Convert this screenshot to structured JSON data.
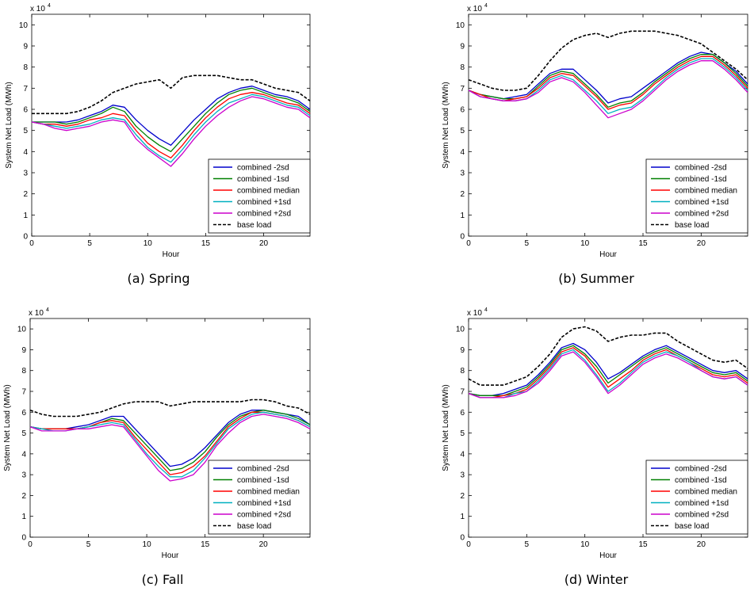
{
  "chart_data": [
    {
      "type": "line",
      "caption": "(a)  Spring",
      "xlabel": "Hour",
      "ylabel": "System Net Load (MWh)",
      "yexponent": "x 10",
      "yexponent_power": "4",
      "xlim": [
        0,
        24
      ],
      "ylim": [
        0,
        10.5
      ],
      "xticks": [
        "0",
        "5",
        "10",
        "15",
        "20"
      ],
      "yticks": [
        "0",
        "1",
        "2",
        "3",
        "4",
        "5",
        "6",
        "7",
        "8",
        "9",
        "10"
      ],
      "legend": "bottom-right",
      "x": [
        0,
        1,
        2,
        3,
        4,
        5,
        6,
        7,
        8,
        9,
        10,
        11,
        12,
        13,
        14,
        15,
        16,
        17,
        18,
        19,
        20,
        21,
        22,
        23,
        24
      ],
      "series": [
        {
          "name": "combined -2sd",
          "color": "#0000cc",
          "dash": "solid",
          "values": [
            5.4,
            5.4,
            5.4,
            5.4,
            5.5,
            5.7,
            5.9,
            6.2,
            6.1,
            5.5,
            5.0,
            4.6,
            4.3,
            4.9,
            5.5,
            6.0,
            6.5,
            6.8,
            7.0,
            7.1,
            6.9,
            6.7,
            6.6,
            6.4,
            6.0
          ]
        },
        {
          "name": "combined -1sd",
          "color": "#008000",
          "dash": "solid",
          "values": [
            5.4,
            5.4,
            5.4,
            5.3,
            5.4,
            5.6,
            5.8,
            6.1,
            5.9,
            5.2,
            4.7,
            4.3,
            4.0,
            4.6,
            5.2,
            5.8,
            6.3,
            6.7,
            6.9,
            7.0,
            6.8,
            6.6,
            6.5,
            6.3,
            5.9
          ]
        },
        {
          "name": "combined median",
          "color": "#ff0000",
          "dash": "solid",
          "values": [
            5.4,
            5.3,
            5.3,
            5.2,
            5.3,
            5.5,
            5.6,
            5.8,
            5.7,
            5.0,
            4.4,
            4.0,
            3.7,
            4.3,
            5.0,
            5.6,
            6.1,
            6.5,
            6.7,
            6.8,
            6.7,
            6.5,
            6.3,
            6.2,
            5.8
          ]
        },
        {
          "name": "combined +1sd",
          "color": "#00b0c0",
          "dash": "solid",
          "values": [
            5.4,
            5.3,
            5.2,
            5.1,
            5.2,
            5.3,
            5.5,
            5.6,
            5.5,
            4.8,
            4.2,
            3.8,
            3.5,
            4.1,
            4.8,
            5.4,
            5.9,
            6.3,
            6.5,
            6.7,
            6.6,
            6.4,
            6.2,
            6.1,
            5.7
          ]
        },
        {
          "name": "combined +2sd",
          "color": "#cc00cc",
          "dash": "solid",
          "values": [
            5.4,
            5.3,
            5.1,
            5.0,
            5.1,
            5.2,
            5.4,
            5.5,
            5.4,
            4.6,
            4.1,
            3.7,
            3.3,
            3.9,
            4.6,
            5.2,
            5.7,
            6.1,
            6.4,
            6.6,
            6.5,
            6.3,
            6.1,
            6.0,
            5.6
          ]
        },
        {
          "name": "base load",
          "color": "#000000",
          "dash": "dashed",
          "values": [
            5.8,
            5.8,
            5.8,
            5.8,
            5.9,
            6.1,
            6.4,
            6.8,
            7.0,
            7.2,
            7.3,
            7.4,
            7.0,
            7.5,
            7.6,
            7.6,
            7.6,
            7.5,
            7.4,
            7.4,
            7.2,
            7.0,
            6.9,
            6.8,
            6.4
          ]
        }
      ]
    },
    {
      "type": "line",
      "caption": "(b)  Summer",
      "xlabel": "Hour",
      "ylabel": "System Net Load (MWh)",
      "yexponent": "x 10",
      "yexponent_power": "4",
      "xlim": [
        0,
        24
      ],
      "ylim": [
        0,
        10.5
      ],
      "xticks": [
        "0",
        "5",
        "10",
        "15",
        "20"
      ],
      "yticks": [
        "0",
        "1",
        "2",
        "3",
        "4",
        "5",
        "6",
        "7",
        "8",
        "9",
        "10"
      ],
      "legend": "bottom-right",
      "x": [
        0,
        1,
        2,
        3,
        4,
        5,
        6,
        7,
        8,
        9,
        10,
        11,
        12,
        13,
        14,
        15,
        16,
        17,
        18,
        19,
        20,
        21,
        22,
        23,
        24
      ],
      "series": [
        {
          "name": "combined -2sd",
          "color": "#0000cc",
          "dash": "solid",
          "values": [
            6.9,
            6.7,
            6.6,
            6.5,
            6.6,
            6.7,
            7.2,
            7.7,
            7.9,
            7.9,
            7.4,
            6.9,
            6.3,
            6.5,
            6.6,
            7.0,
            7.4,
            7.8,
            8.2,
            8.5,
            8.7,
            8.6,
            8.2,
            7.8,
            7.2
          ]
        },
        {
          "name": "combined -1sd",
          "color": "#008000",
          "dash": "solid",
          "values": [
            6.9,
            6.7,
            6.6,
            6.5,
            6.5,
            6.6,
            7.1,
            7.6,
            7.8,
            7.7,
            7.2,
            6.7,
            6.1,
            6.3,
            6.4,
            6.8,
            7.3,
            7.7,
            8.1,
            8.4,
            8.6,
            8.6,
            8.2,
            7.7,
            7.1
          ]
        },
        {
          "name": "combined median",
          "color": "#ff0000",
          "dash": "solid",
          "values": [
            6.9,
            6.7,
            6.5,
            6.4,
            6.5,
            6.6,
            7.0,
            7.5,
            7.7,
            7.6,
            7.1,
            6.6,
            6.0,
            6.2,
            6.3,
            6.7,
            7.2,
            7.6,
            8.0,
            8.3,
            8.5,
            8.5,
            8.1,
            7.6,
            7.0
          ]
        },
        {
          "name": "combined +1sd",
          "color": "#00b0c0",
          "dash": "solid",
          "values": [
            6.9,
            6.6,
            6.5,
            6.4,
            6.4,
            6.5,
            6.9,
            7.4,
            7.6,
            7.4,
            6.9,
            6.4,
            5.8,
            6.0,
            6.1,
            6.5,
            7.0,
            7.5,
            7.9,
            8.2,
            8.4,
            8.4,
            8.0,
            7.5,
            6.9
          ]
        },
        {
          "name": "combined +2sd",
          "color": "#cc00cc",
          "dash": "solid",
          "values": [
            6.9,
            6.6,
            6.5,
            6.4,
            6.4,
            6.5,
            6.8,
            7.3,
            7.5,
            7.3,
            6.8,
            6.2,
            5.6,
            5.8,
            6.0,
            6.4,
            6.9,
            7.4,
            7.8,
            8.1,
            8.3,
            8.3,
            7.9,
            7.4,
            6.8
          ]
        },
        {
          "name": "base load",
          "color": "#000000",
          "dash": "dashed",
          "values": [
            7.4,
            7.2,
            7.0,
            6.9,
            6.9,
            7.0,
            7.6,
            8.3,
            8.9,
            9.3,
            9.5,
            9.6,
            9.4,
            9.6,
            9.7,
            9.7,
            9.7,
            9.6,
            9.5,
            9.3,
            9.1,
            8.7,
            8.3,
            7.9,
            7.4
          ]
        }
      ]
    },
    {
      "type": "line",
      "caption": "(c)  Fall",
      "xlabel": "Hour",
      "ylabel": "System Net Load (MWh)",
      "yexponent": "x 10",
      "yexponent_power": "4",
      "xlim": [
        0,
        24
      ],
      "ylim": [
        0,
        10.5
      ],
      "xticks": [
        "0",
        "5",
        "10",
        "15",
        "20"
      ],
      "yticks": [
        "0",
        "1",
        "2",
        "3",
        "4",
        "5",
        "6",
        "7",
        "8",
        "9",
        "10"
      ],
      "legend": "bottom-right",
      "x": [
        0,
        1,
        2,
        3,
        4,
        5,
        6,
        7,
        8,
        9,
        10,
        11,
        12,
        13,
        14,
        15,
        16,
        17,
        18,
        19,
        20,
        21,
        22,
        23,
        24
      ],
      "series": [
        {
          "name": "combined -2sd",
          "color": "#0000cc",
          "dash": "solid",
          "values": [
            5.3,
            5.2,
            5.2,
            5.2,
            5.3,
            5.4,
            5.6,
            5.8,
            5.8,
            5.2,
            4.6,
            4.0,
            3.4,
            3.5,
            3.8,
            4.3,
            4.9,
            5.5,
            5.9,
            6.1,
            6.1,
            6.0,
            5.9,
            5.8,
            5.4
          ]
        },
        {
          "name": "combined -1sd",
          "color": "#008000",
          "dash": "solid",
          "values": [
            5.3,
            5.2,
            5.2,
            5.2,
            5.2,
            5.3,
            5.5,
            5.7,
            5.6,
            5.0,
            4.4,
            3.8,
            3.2,
            3.3,
            3.6,
            4.1,
            4.8,
            5.4,
            5.8,
            6.0,
            6.1,
            6.0,
            5.9,
            5.7,
            5.4
          ]
        },
        {
          "name": "combined median",
          "color": "#ff0000",
          "dash": "solid",
          "values": [
            5.3,
            5.2,
            5.2,
            5.2,
            5.2,
            5.3,
            5.5,
            5.6,
            5.5,
            4.8,
            4.2,
            3.6,
            3.0,
            3.1,
            3.4,
            3.9,
            4.6,
            5.3,
            5.7,
            6.0,
            6.0,
            5.9,
            5.8,
            5.6,
            5.3
          ]
        },
        {
          "name": "combined +1sd",
          "color": "#00b0c0",
          "dash": "solid",
          "values": [
            5.3,
            5.2,
            5.1,
            5.1,
            5.2,
            5.3,
            5.4,
            5.5,
            5.4,
            4.7,
            4.0,
            3.4,
            2.9,
            2.9,
            3.2,
            3.8,
            4.5,
            5.2,
            5.6,
            5.9,
            6.0,
            5.9,
            5.8,
            5.6,
            5.3
          ]
        },
        {
          "name": "combined +2sd",
          "color": "#cc00cc",
          "dash": "solid",
          "values": [
            5.3,
            5.1,
            5.1,
            5.1,
            5.2,
            5.2,
            5.3,
            5.4,
            5.3,
            4.6,
            3.9,
            3.2,
            2.7,
            2.8,
            3.0,
            3.6,
            4.4,
            5.0,
            5.5,
            5.8,
            5.9,
            5.8,
            5.7,
            5.5,
            5.2
          ]
        },
        {
          "name": "base load",
          "color": "#000000",
          "dash": "dashed",
          "values": [
            6.1,
            5.9,
            5.8,
            5.8,
            5.8,
            5.9,
            6.0,
            6.2,
            6.4,
            6.5,
            6.5,
            6.5,
            6.3,
            6.4,
            6.5,
            6.5,
            6.5,
            6.5,
            6.5,
            6.6,
            6.6,
            6.5,
            6.3,
            6.2,
            5.9
          ]
        }
      ]
    },
    {
      "type": "line",
      "caption": "(d)  Winter",
      "xlabel": "Hour",
      "ylabel": "System Net Load (MWh)",
      "yexponent": "x 10",
      "yexponent_power": "4",
      "xlim": [
        0,
        24
      ],
      "ylim": [
        0,
        10.5
      ],
      "xticks": [
        "0",
        "5",
        "10",
        "15",
        "20"
      ],
      "yticks": [
        "0",
        "1",
        "2",
        "3",
        "4",
        "5",
        "6",
        "7",
        "8",
        "9",
        "10"
      ],
      "legend": "bottom-right",
      "x": [
        0,
        1,
        2,
        3,
        4,
        5,
        6,
        7,
        8,
        9,
        10,
        11,
        12,
        13,
        14,
        15,
        16,
        17,
        18,
        19,
        20,
        21,
        22,
        23,
        24
      ],
      "series": [
        {
          "name": "combined -2sd",
          "color": "#0000cc",
          "dash": "solid",
          "values": [
            6.9,
            6.8,
            6.8,
            6.9,
            7.1,
            7.3,
            7.8,
            8.4,
            9.1,
            9.3,
            9.0,
            8.4,
            7.6,
            7.9,
            8.3,
            8.7,
            9.0,
            9.2,
            8.9,
            8.6,
            8.3,
            8.0,
            7.9,
            8.0,
            7.6
          ]
        },
        {
          "name": "combined -1sd",
          "color": "#008000",
          "dash": "solid",
          "values": [
            6.9,
            6.8,
            6.8,
            6.8,
            7.0,
            7.2,
            7.7,
            8.3,
            9.0,
            9.2,
            8.8,
            8.2,
            7.4,
            7.8,
            8.2,
            8.6,
            8.9,
            9.1,
            8.8,
            8.5,
            8.2,
            7.9,
            7.8,
            7.9,
            7.5
          ]
        },
        {
          "name": "combined median",
          "color": "#ff0000",
          "dash": "solid",
          "values": [
            6.9,
            6.7,
            6.7,
            6.8,
            6.9,
            7.1,
            7.6,
            8.2,
            8.9,
            9.1,
            8.7,
            8.0,
            7.2,
            7.6,
            8.0,
            8.5,
            8.8,
            9.0,
            8.7,
            8.4,
            8.1,
            7.8,
            7.7,
            7.8,
            7.4
          ]
        },
        {
          "name": "combined +1sd",
          "color": "#00b0c0",
          "dash": "solid",
          "values": [
            6.9,
            6.7,
            6.7,
            6.7,
            6.9,
            7.0,
            7.5,
            8.1,
            8.8,
            9.0,
            8.5,
            7.8,
            7.0,
            7.4,
            7.9,
            8.4,
            8.7,
            8.9,
            8.7,
            8.4,
            8.0,
            7.7,
            7.6,
            7.7,
            7.3
          ]
        },
        {
          "name": "combined +2sd",
          "color": "#cc00cc",
          "dash": "solid",
          "values": [
            6.9,
            6.7,
            6.7,
            6.7,
            6.8,
            7.0,
            7.4,
            8.0,
            8.7,
            8.9,
            8.4,
            7.7,
            6.9,
            7.3,
            7.8,
            8.3,
            8.6,
            8.8,
            8.6,
            8.3,
            8.0,
            7.7,
            7.6,
            7.7,
            7.3
          ]
        },
        {
          "name": "base load",
          "color": "#000000",
          "dash": "dashed",
          "values": [
            7.6,
            7.3,
            7.3,
            7.3,
            7.5,
            7.7,
            8.2,
            8.8,
            9.6,
            10.0,
            10.1,
            9.9,
            9.4,
            9.6,
            9.7,
            9.7,
            9.8,
            9.8,
            9.4,
            9.1,
            8.8,
            8.5,
            8.4,
            8.5,
            8.1
          ]
        }
      ]
    }
  ]
}
